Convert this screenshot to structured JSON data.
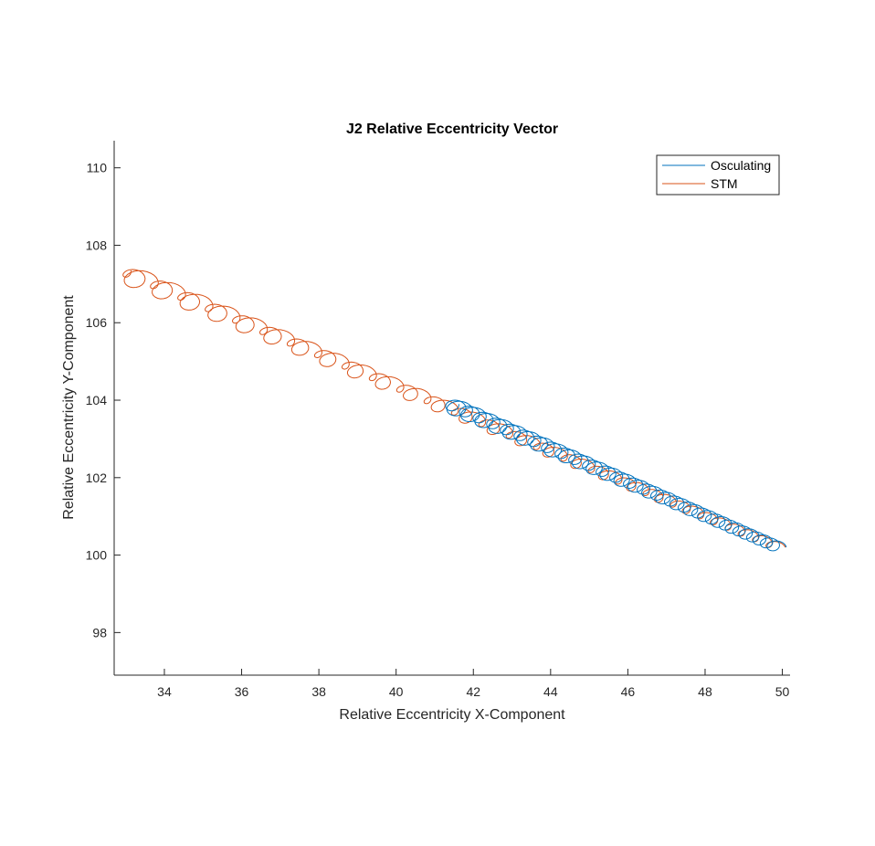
{
  "chart_data": {
    "type": "line",
    "title": "J2 Relative Eccentricity Vector",
    "xlabel": "Relative Eccentricity X-Component",
    "ylabel": "Relative Eccentricity Y-Component",
    "xlim": [
      32.7,
      50.2
    ],
    "ylim": [
      96.9,
      110.7
    ],
    "xticks": [
      34,
      36,
      38,
      40,
      42,
      44,
      46,
      48,
      50
    ],
    "yticks": [
      98,
      100,
      102,
      104,
      106,
      108,
      110
    ],
    "grid": false,
    "legend_position": "top-right",
    "series": [
      {
        "name": "Osculating",
        "color": "#0072BD",
        "trend": {
          "x": [
            50.0,
            41.5
          ],
          "y": [
            100.2,
            103.9
          ]
        },
        "loops": 48,
        "loop_radius": [
          0.17,
          0.27
        ]
      },
      {
        "name": "STM",
        "color": "#D95319",
        "trend": {
          "x": [
            50.0,
            33.0
          ],
          "y": [
            100.2,
            107.35
          ]
        },
        "loops": 48,
        "loop_radius": [
          0.13,
          0.36
        ]
      }
    ]
  }
}
